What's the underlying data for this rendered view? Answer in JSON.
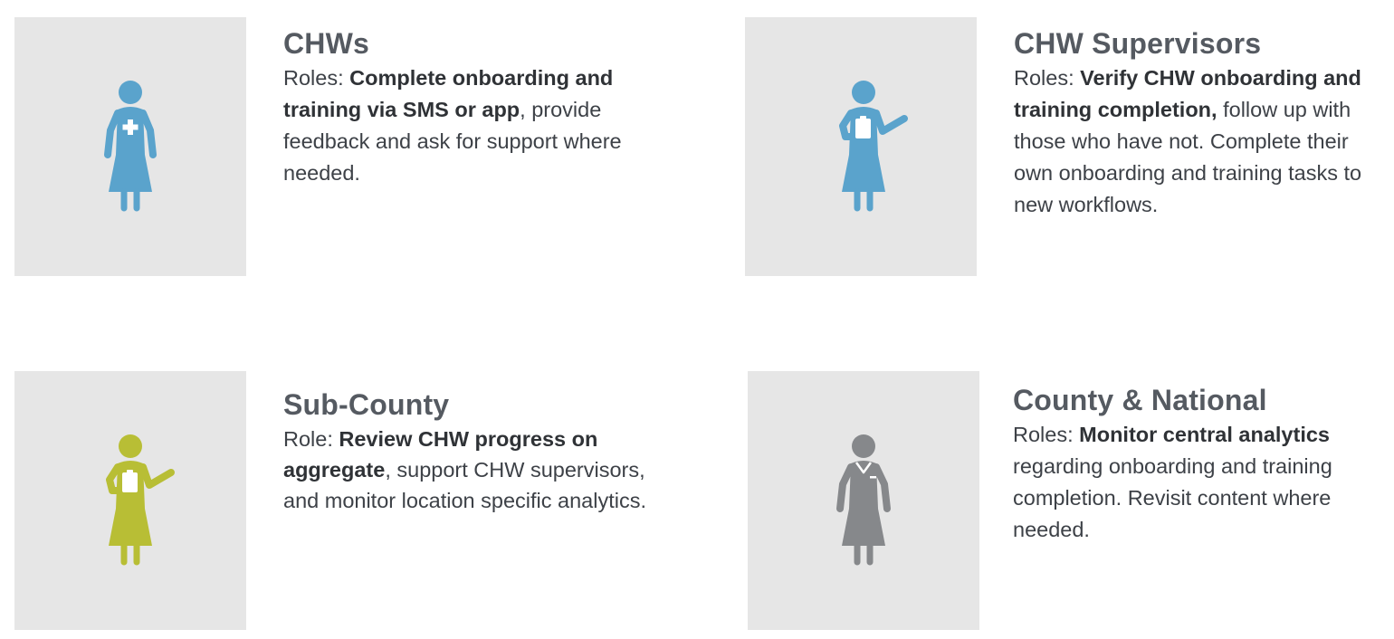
{
  "colors": {
    "tile_background": "#e6e6e6",
    "chw_figure": "#5aa3cc",
    "supervisor_figure": "#5aa3cc",
    "subcounty_figure": "#b8be35",
    "county_figure": "#86888b",
    "title": "#555a61",
    "body": "#3d4147"
  },
  "cards": [
    {
      "icon": "nurse-cross-icon",
      "title": "CHWs",
      "prefix": "Roles: ",
      "bold": "Complete onboarding and training via SMS or app",
      "rest": ", provide feedback and ask for support where needed."
    },
    {
      "icon": "supervisor-clipboard-icon",
      "title": "CHW Supervisors",
      "prefix": "Roles: ",
      "bold": "Verify CHW onboarding and training completion,",
      "rest": " follow up with those who have not. Complete their own onboarding and training tasks to new workflows."
    },
    {
      "icon": "subcounty-clipboard-icon",
      "title": "Sub-County",
      "prefix": "Role: ",
      "bold": "Review CHW progress on aggregate",
      "rest": ", support CHW supervisors, and monitor location specific analytics."
    },
    {
      "icon": "official-collar-icon",
      "title": "County & National",
      "prefix": "Roles: ",
      "bold": "Monitor central analytics",
      "rest": " regarding onboarding and training completion. Revisit content where needed."
    }
  ]
}
